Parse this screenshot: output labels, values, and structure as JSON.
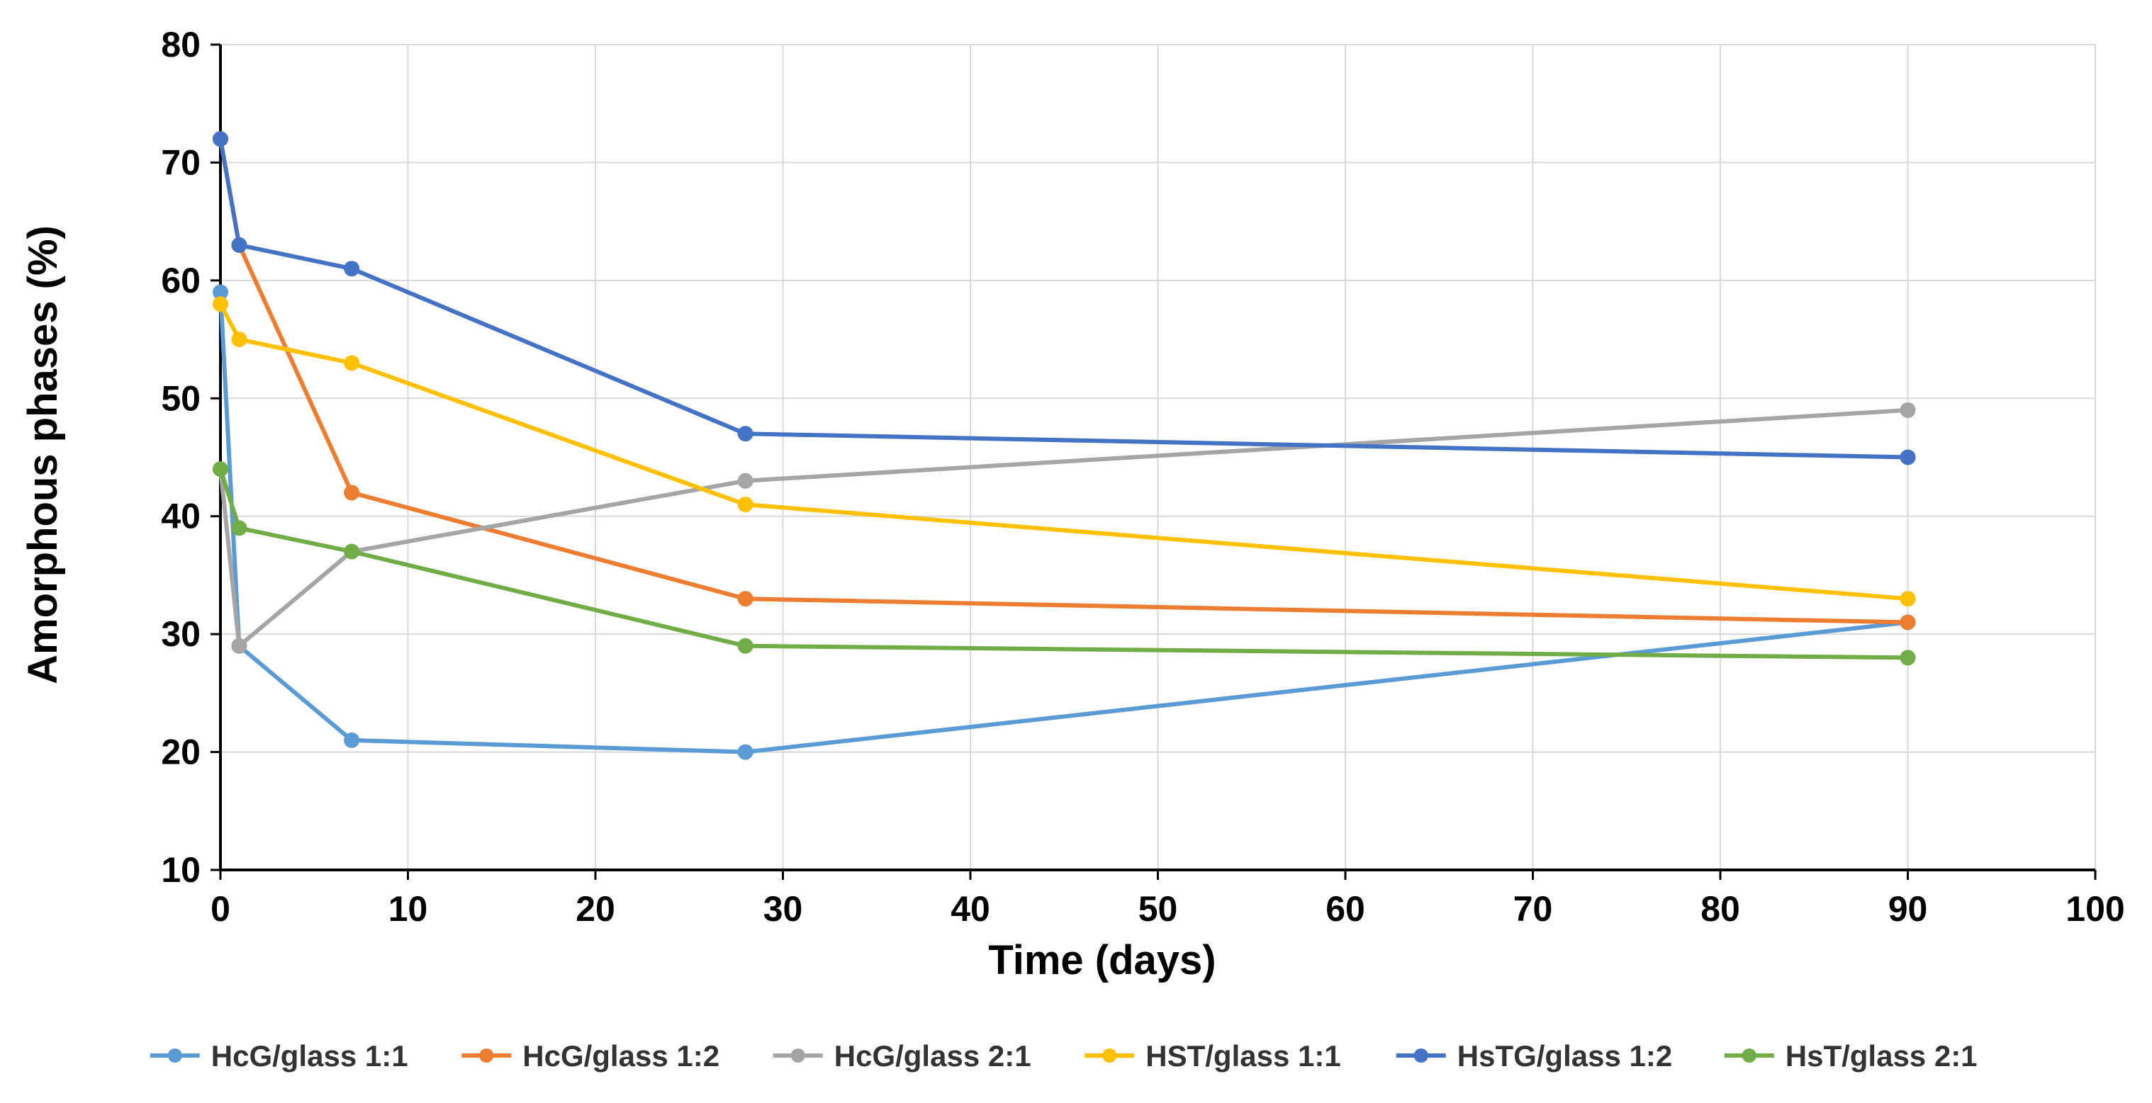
{
  "chart_data": {
    "type": "line",
    "title": "",
    "xlabel": "Time (days)",
    "ylabel": "Amorphous phases (%)",
    "xlim": [
      0,
      100
    ],
    "ylim": [
      10,
      80
    ],
    "xticks": [
      0,
      10,
      20,
      30,
      40,
      50,
      60,
      70,
      80,
      90,
      100
    ],
    "yticks": [
      10,
      20,
      30,
      40,
      50,
      60,
      70,
      80
    ],
    "grid": true,
    "legend_position": "bottom",
    "x": [
      0,
      1,
      7,
      28,
      90
    ],
    "series": [
      {
        "name": "HcG/glass 1:1",
        "color": "#5b9bd5",
        "values": [
          59,
          29,
          21,
          20,
          31
        ]
      },
      {
        "name": "HcG/glass 1:2",
        "color": "#ed7d31",
        "values": [
          72,
          63,
          42,
          33,
          31
        ]
      },
      {
        "name": "HcG/glass 2:1",
        "color": "#a5a5a5",
        "values": [
          44,
          29,
          37,
          43,
          49
        ]
      },
      {
        "name": "HST/glass 1:1",
        "color": "#ffc000",
        "values": [
          58,
          55,
          53,
          41,
          33
        ]
      },
      {
        "name": "HsTG/glass 1:2",
        "color": "#4472c4",
        "values": [
          72,
          63,
          61,
          47,
          45
        ]
      },
      {
        "name": "HsT/glass 2:1",
        "color": "#70ad47",
        "values": [
          44,
          39,
          37,
          29,
          28
        ]
      }
    ]
  }
}
